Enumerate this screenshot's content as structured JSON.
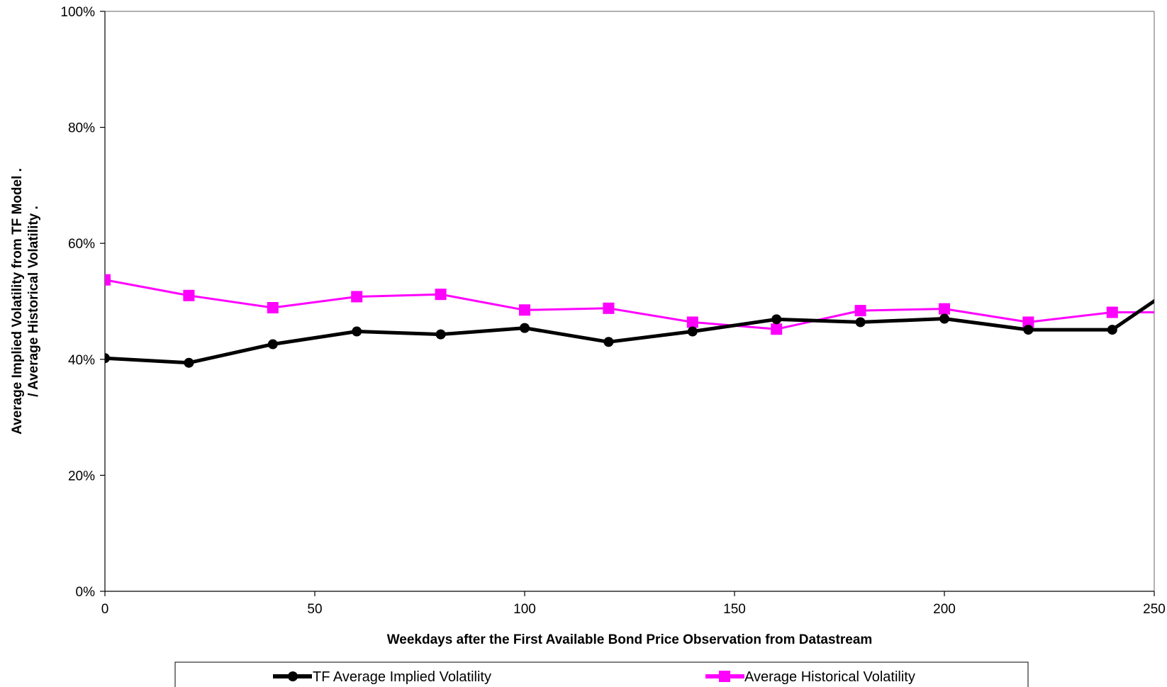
{
  "chart_data": {
    "type": "line",
    "title": "",
    "xlabel": "Weekdays after the First Available Bond Price Observation from Datastream",
    "ylabel_line1": "Average Implied Volatility from TF Model   .",
    "ylabel_line2": "/  Average Historical Volatility   .",
    "xlim": [
      0,
      250
    ],
    "ylim": [
      0,
      1
    ],
    "x_ticks": [
      0,
      50,
      100,
      150,
      200,
      250
    ],
    "x_tick_labels": [
      "0",
      "50",
      "100",
      "150",
      "200",
      "250"
    ],
    "y_ticks": [
      0,
      0.2,
      0.4,
      0.6,
      0.8,
      1.0
    ],
    "y_tick_labels": [
      "0%",
      "20%",
      "40%",
      "60%",
      "80%",
      "100%"
    ],
    "grid": false,
    "legend_position": "bottom",
    "series": [
      {
        "name": "TF Average Implied Volatility",
        "color": "#000000",
        "marker": "circle",
        "x": [
          0,
          20,
          40,
          60,
          80,
          100,
          120,
          140,
          160,
          180,
          200,
          220,
          240,
          260
        ],
        "y": [
          0.402,
          0.394,
          0.426,
          0.448,
          0.443,
          0.454,
          0.43,
          0.448,
          0.469,
          0.464,
          0.47,
          0.451,
          0.451,
          0.55
        ]
      },
      {
        "name": "Average Historical Volatility",
        "color": "#ff00ff",
        "marker": "square",
        "x": [
          0,
          20,
          40,
          60,
          80,
          100,
          120,
          140,
          160,
          180,
          200,
          220,
          240,
          260
        ],
        "y": [
          0.537,
          0.51,
          0.489,
          0.508,
          0.512,
          0.485,
          0.488,
          0.464,
          0.452,
          0.484,
          0.487,
          0.464,
          0.481,
          0.481
        ]
      }
    ]
  }
}
